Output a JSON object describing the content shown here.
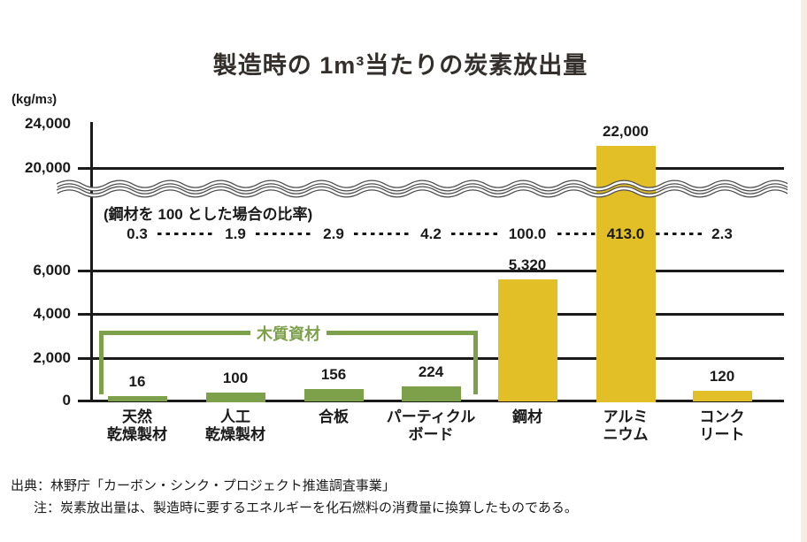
{
  "page": {
    "title": "製造時の 1m³当たりの炭素放出量",
    "source": "出典：林野庁「カーボン・シンク・プロジェクト推進調査事業」",
    "note": "注：炭素放出量は、製造時に要するエネルギーを化石燃料の消費量に換算したものである。"
  },
  "chart_data": {
    "type": "bar",
    "title": "製造時の 1m³当たりの炭素放出量",
    "unit_label": {
      "prefix": "(kg/m",
      "sub": "3",
      "suffix": ")"
    },
    "categories": [
      "天然乾燥製材",
      "人工乾燥製材",
      "合板",
      "パーティクルボード",
      "鋼材",
      "アルミニウム",
      "コンクリート"
    ],
    "category_lines": [
      [
        "天然",
        "乾燥製材"
      ],
      [
        "人工",
        "乾燥製材"
      ],
      [
        "合板"
      ],
      [
        "パーティクル",
        "ボード"
      ],
      [
        "鋼材"
      ],
      [
        "アルミ",
        "ニウム"
      ],
      [
        "コンク",
        "リート"
      ]
    ],
    "values": [
      16,
      100,
      156,
      224,
      5320,
      22000,
      120
    ],
    "value_labels": [
      "16",
      "100",
      "156",
      "224",
      "5,320",
      "22,000",
      "120"
    ],
    "ratio_caption": "(鋼材を 100 とした場合の比率)",
    "ratios": [
      "0.3",
      "1.9",
      "2.9",
      "4.2",
      "100.0",
      "413.0",
      "2.3"
    ],
    "group_label": "木質資材",
    "group_members": [
      0,
      1,
      2,
      3
    ],
    "ylabel": "kg/m3",
    "y_ticks": [
      "24,000",
      "20,000",
      "6,000",
      "4,000",
      "2,000",
      "0"
    ],
    "y_tick_values": [
      24000,
      20000,
      6000,
      4000,
      2000,
      0
    ],
    "axis_break": "wavy break between 6,000 and 20,000",
    "ylim_lower": [
      0,
      7000
    ],
    "ylim_upper": [
      20000,
      24000
    ],
    "grid": "horizontal gridlines at labeled ticks",
    "legend": "none",
    "colors": {
      "wood_bar": "#7da14b",
      "mineral_bar": "#e3bf27",
      "grid_line": "#1a1a1a",
      "bracket": "#7da14b",
      "wave": "#4d4d4d",
      "text": "#1a1a1a",
      "edge_strip": "#f4efe2"
    },
    "bar_color_keys": [
      "wood_bar",
      "wood_bar",
      "wood_bar",
      "wood_bar",
      "mineral_bar",
      "mineral_bar",
      "mineral_bar"
    ]
  }
}
